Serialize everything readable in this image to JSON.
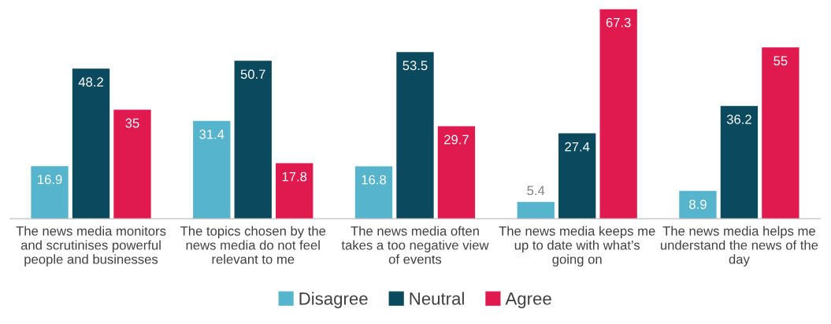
{
  "chart_data": {
    "type": "bar",
    "categories": [
      "The news media monitors and scrutinises powerful people and businesses",
      "The topics chosen by the news media do not feel relevant to me",
      "The news media often takes a too negative view of events",
      "The news media keeps me up to date with what’s going on",
      "The news media helps me understand the news of the day"
    ],
    "series": [
      {
        "name": "Disagree",
        "color": "#56b4cc",
        "values": [
          16.9,
          31.4,
          16.8,
          5.4,
          8.9
        ]
      },
      {
        "name": "Neutral",
        "color": "#0b4a5e",
        "values": [
          48.2,
          50.7,
          53.5,
          27.4,
          36.2
        ]
      },
      {
        "name": "Agree",
        "color": "#e0194f",
        "values": [
          35,
          17.8,
          29.7,
          67.3,
          55
        ]
      }
    ],
    "data_labels": true,
    "legend": "bottom",
    "grid": false
  }
}
